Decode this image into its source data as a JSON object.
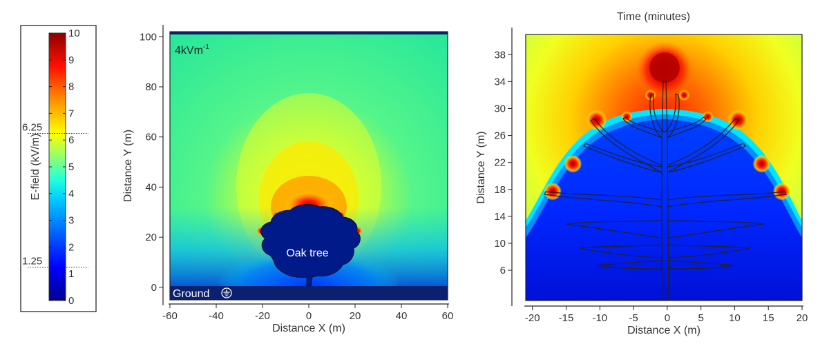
{
  "chart_data": [
    {
      "type": "colorbar",
      "label": "E-field (kV/m)",
      "range": [
        0,
        10
      ],
      "ticks": [
        0,
        1,
        2,
        3,
        4,
        5,
        6,
        7,
        8,
        9,
        10
      ],
      "markers": [
        {
          "value": 6.25,
          "label": "6.25"
        },
        {
          "value": 1.25,
          "label": "1.25"
        }
      ],
      "colormap": [
        "#00008f",
        "#0000ff",
        "#00a0ff",
        "#00ffff",
        "#80ff80",
        "#ffff00",
        "#ff8000",
        "#ff0000",
        "#8f0000"
      ]
    },
    {
      "type": "heatmap",
      "xlabel": "Distance X (m)",
      "ylabel": "Distance Y (m)",
      "xlim": [
        -60,
        60
      ],
      "ylim": [
        -5,
        102
      ],
      "xticks": [
        -60,
        -40,
        -20,
        0,
        20,
        40,
        60
      ],
      "yticks": [
        0,
        20,
        40,
        60,
        80,
        100
      ],
      "annotations": {
        "field_label": "4kVm",
        "field_label_sup": "-1",
        "ground_label": "Ground",
        "tree_label": "Oak tree"
      },
      "colors": {
        "ground": "#0b2170",
        "tree": "#001a8a"
      }
    },
    {
      "type": "heatmap",
      "title": "Time (minutes)",
      "xlabel": "Distance X (m)",
      "ylabel": "Distance Y (m)",
      "xlim": [
        -21,
        20
      ],
      "ylim": [
        1.5,
        41
      ],
      "xticks": [
        -20,
        -15,
        -10,
        -5,
        0,
        5,
        10,
        15,
        20
      ],
      "yticks": [
        6,
        10,
        14,
        18,
        22,
        26,
        30,
        34,
        38
      ],
      "hotspots": [
        {
          "x": 0,
          "y": 35
        },
        {
          "x": -10.5,
          "y": 28.3
        },
        {
          "x": 10.5,
          "y": 28.3
        },
        {
          "x": -17,
          "y": 17.7
        },
        {
          "x": 17,
          "y": 17.7
        },
        {
          "x": -14,
          "y": 21.8
        },
        {
          "x": 14,
          "y": 21.8
        },
        {
          "x": -6,
          "y": 28.8
        },
        {
          "x": 6,
          "y": 28.8
        },
        {
          "x": -2.5,
          "y": 32
        },
        {
          "x": 2.5,
          "y": 32
        }
      ]
    }
  ]
}
